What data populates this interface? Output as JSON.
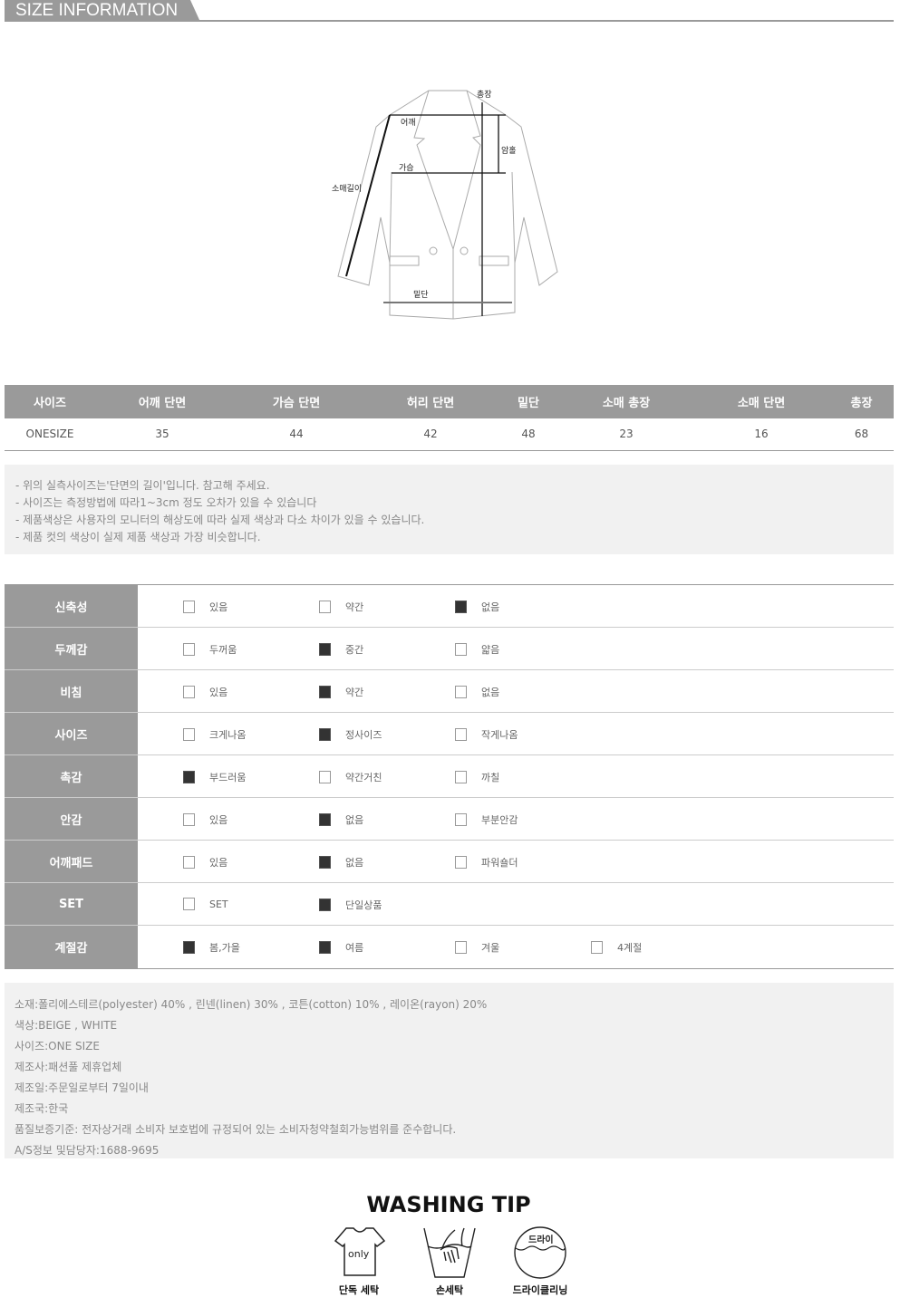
{
  "header": {
    "title": "SIZE INFORMATION"
  },
  "diagram": {
    "labels": {
      "total_length": "총장",
      "shoulder": "어깨",
      "armhole": "암홀",
      "chest": "가슴",
      "sleeve_length": "소매길이",
      "hem": "밑단"
    }
  },
  "size_table": {
    "headers": [
      "사이즈",
      "어깨 단면",
      "가슴 단면",
      "허리 단면",
      "밑단",
      "소매 총장",
      "소매 단면",
      "총장"
    ],
    "rows": [
      [
        "ONESIZE",
        "35",
        "44",
        "42",
        "48",
        "23",
        "16",
        "68"
      ]
    ]
  },
  "notes": [
    "- 위의 실측사이즈는'단면의 길이'입니다. 참고해 주세요.",
    "- 사이즈는 측정방법에 따라1~3cm 정도 오차가 있을 수 있습니다",
    "- 제품색상은 사용자의 모니터의 해상도에 따라 실제 색상과 다소 차이가 있을 수 있습니다.",
    "- 제품 컷의 색상이 실제 제품 색상과 가장 비슷합니다."
  ],
  "properties": [
    {
      "label": "신축성",
      "options": [
        {
          "text": "있음",
          "checked": false
        },
        {
          "text": "약간",
          "checked": false
        },
        {
          "text": "없음",
          "checked": true
        }
      ]
    },
    {
      "label": "두께감",
      "options": [
        {
          "text": "두꺼움",
          "checked": false
        },
        {
          "text": "중간",
          "checked": true
        },
        {
          "text": "얇음",
          "checked": false
        }
      ]
    },
    {
      "label": "비침",
      "options": [
        {
          "text": "있음",
          "checked": false
        },
        {
          "text": "약간",
          "checked": true
        },
        {
          "text": "없음",
          "checked": false
        }
      ]
    },
    {
      "label": "사이즈",
      "options": [
        {
          "text": "크게나옴",
          "checked": false
        },
        {
          "text": "정사이즈",
          "checked": true
        },
        {
          "text": "작게나옴",
          "checked": false
        }
      ]
    },
    {
      "label": "촉감",
      "options": [
        {
          "text": "부드러움",
          "checked": true
        },
        {
          "text": "약간거친",
          "checked": false
        },
        {
          "text": "까칠",
          "checked": false
        }
      ]
    },
    {
      "label": "안감",
      "options": [
        {
          "text": "있음",
          "checked": false
        },
        {
          "text": "없음",
          "checked": true
        },
        {
          "text": "부분안감",
          "checked": false
        }
      ]
    },
    {
      "label": "어깨패드",
      "options": [
        {
          "text": "있음",
          "checked": false
        },
        {
          "text": "없음",
          "checked": true
        },
        {
          "text": "파워숄더",
          "checked": false
        }
      ]
    },
    {
      "label": "SET",
      "options": [
        {
          "text": "SET",
          "checked": false
        },
        {
          "text": "단일상품",
          "checked": true
        }
      ]
    },
    {
      "label": "계절감",
      "options": [
        {
          "text": "봄,가을",
          "checked": true
        },
        {
          "text": "여름",
          "checked": true
        },
        {
          "text": "겨울",
          "checked": false
        },
        {
          "text": "4계절",
          "checked": false
        }
      ]
    }
  ],
  "info": [
    "소재:폴리에스테르(polyester) 40% , 린넨(linen) 30% , 코튼(cotton) 10% , 레이온(rayon) 20%",
    "색상:BEIGE , WHITE",
    "사이즈:ONE SIZE",
    "제조사:패션풀 제휴업체",
    "제조일:주문일로부터 7일이내",
    "제조국:한국",
    "품질보증기준: 전자상거래 소비자 보호법에 규정되어 있는 소비자청약철회가능범위를 준수합니다.",
    "A/S정보 및담당자:1688-9695"
  ],
  "washing": {
    "title": "WASHING TIP",
    "items": [
      {
        "icon": "tshirt-only-icon",
        "icon_text": "only",
        "label": "단독 세탁"
      },
      {
        "icon": "hand-wash-icon",
        "label": "손세탁"
      },
      {
        "icon": "dry-clean-icon",
        "icon_text": "드라이",
        "label": "드라이클리닝"
      }
    ]
  }
}
